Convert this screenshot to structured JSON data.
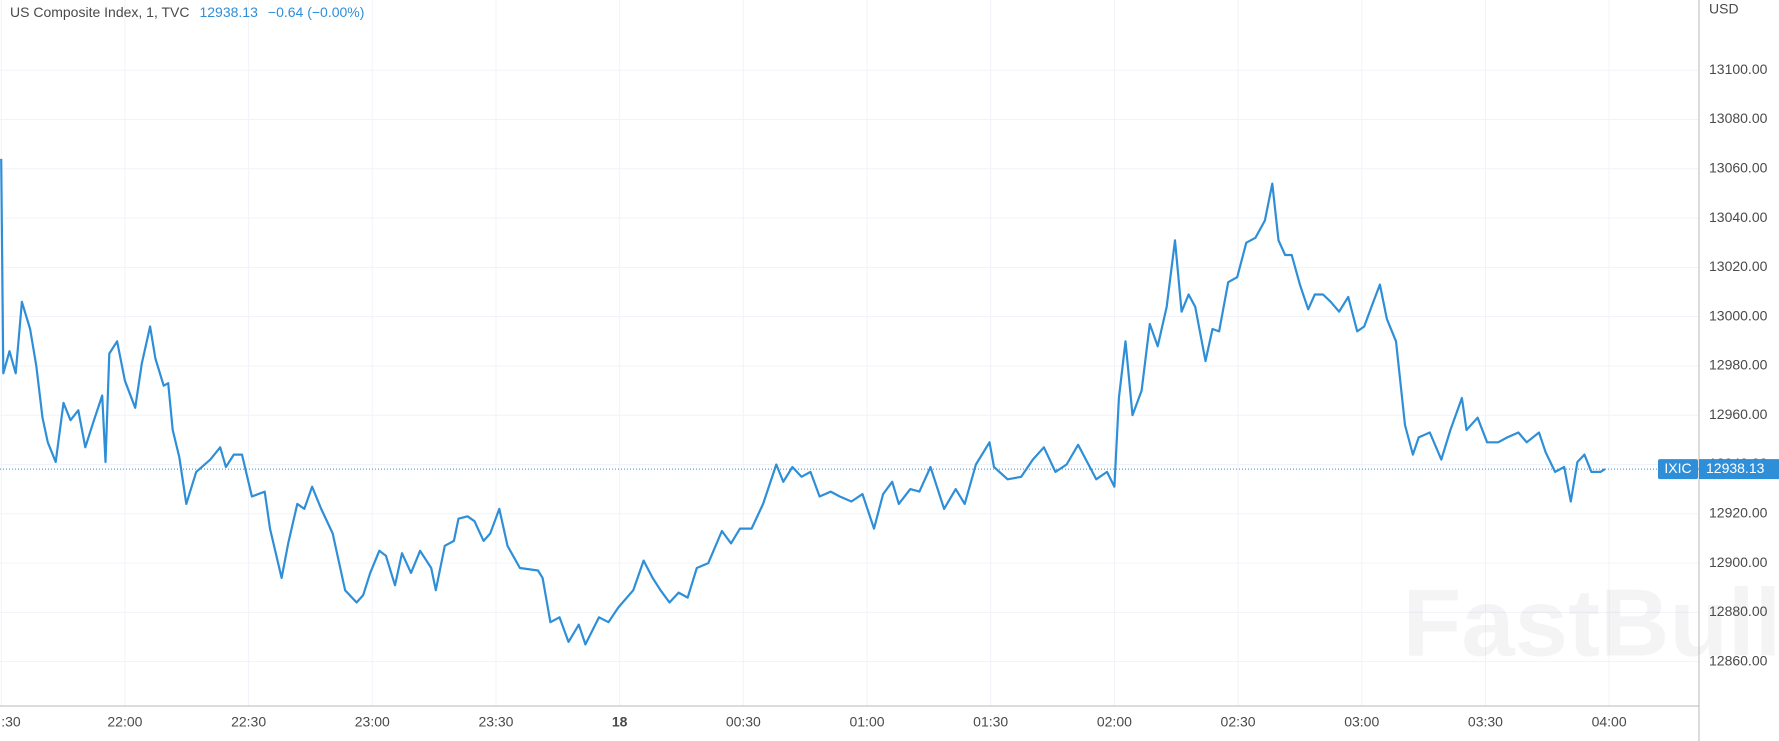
{
  "chart_data": {
    "type": "line",
    "title": "US Composite Index, 1, TVC",
    "last_value": 12938.13,
    "change": "−0.64 (−0.00%)",
    "symbol": "IXIC",
    "currency": "USD",
    "watermark": "FastBull",
    "grid": true,
    "x": [
      0,
      0.5,
      2,
      3.5,
      5,
      7,
      8.5,
      10,
      11.3,
      13.2,
      15.1,
      16.8,
      18.7,
      20.4,
      22.3,
      24.5,
      25.3,
      26.2,
      28.1,
      30,
      32.5,
      34.1,
      36.1,
      37.4,
      39.4,
      40.5,
      41.6,
      43.2,
      44.9,
      47.3,
      50.7,
      53.1,
      54.5,
      56.4,
      58.4,
      60.8,
      63.9,
      65.2,
      68,
      69.6,
      71.8,
      73.5,
      75.4,
      77.6,
      80.4,
      83.4,
      86.2,
      87.8,
      89.5,
      91.7,
      93.3,
      95.5,
      97.2,
      99.4,
      101.6,
      104.3,
      105.4,
      107.6,
      109.8,
      110.9,
      113.1,
      114.8,
      117,
      118.6,
      120.8,
      122.8,
      125.8,
      130.2,
      131.3,
      133.2,
      135.4,
      137.6,
      140.1,
      141.7,
      145,
      147.3,
      149.7,
      153.3,
      155.8,
      158,
      159.9,
      162.1,
      164.3,
      166.5,
      168.7,
      171.5,
      174.8,
      177,
      179.2,
      182,
      184.8,
      188,
      189.7,
      191.9,
      194.1,
      196.3,
      198.5,
      201.2,
      203.4,
      206.2,
      208.9,
      211.7,
      213.9,
      216.1,
      217.7,
      220.5,
      222.7,
      225.4,
      228.7,
      231.5,
      233.7,
      236.4,
      239.7,
      240.8,
      244.1,
      247.4,
      250.2,
      252.9,
      255.7,
      258.4,
      261.2,
      263.4,
      265.6,
      268.2,
      270,
      271.1,
      272.7,
      274.4,
      276.6,
      278.6,
      280.5,
      282.7,
      284.7,
      286.3,
      288,
      289.6,
      292.1,
      293.8,
      295.4,
      297.6,
      299.8,
      302,
      304.2,
      306.5,
      308.3,
      309.8,
      311.4,
      313,
      315,
      317,
      318.6,
      320.6,
      322.5,
      324.5,
      326.7,
      328.9,
      330.6,
      332.8,
      334.4,
      336.1,
      338.3,
      340.5,
      342.4,
      343.8,
      346.5,
      349.3,
      351.5,
      354.3,
      355.4,
      358.1,
      360.4,
      363.1,
      365.3,
      368,
      370,
      373,
      374.6,
      376.9,
      379.1,
      380.7,
      382.3,
      384,
      385.7,
      387.9,
      389
    ],
    "series": [
      {
        "name": "IXIC",
        "color": "#2e8fd8",
        "values": [
          13064,
          12977,
          12986,
          12977,
          13006,
          12995,
          12980,
          12959,
          12949,
          12941,
          12965,
          12958,
          12962,
          12947,
          12957,
          12968,
          12941,
          12985,
          12990,
          12974,
          12963,
          12981,
          12996,
          12983,
          12972,
          12973,
          12954,
          12943,
          12924,
          12937,
          12942,
          12947,
          12939,
          12944,
          12944,
          12927,
          12929,
          12914,
          12894,
          12908,
          12924,
          12922,
          12931,
          12922,
          12912,
          12889,
          12884,
          12887,
          12896,
          12905,
          12903,
          12891,
          12904,
          12896,
          12905,
          12898,
          12889,
          12907,
          12909,
          12918,
          12919,
          12917,
          12909,
          12912,
          12922,
          12907,
          12898,
          12897,
          12894,
          12876,
          12878,
          12868,
          12875,
          12867,
          12878,
          12876,
          12882,
          12889,
          12901,
          12894,
          12889,
          12884,
          12888,
          12886,
          12898,
          12900,
          12913,
          12908,
          12914,
          12914,
          12924,
          12940,
          12933,
          12939,
          12935,
          12937,
          12927,
          12929,
          12927,
          12925,
          12928,
          12914,
          12928,
          12933,
          12924,
          12930,
          12929,
          12939,
          12922,
          12930,
          12924,
          12940,
          12949,
          12939,
          12934,
          12935,
          12942,
          12947,
          12937,
          12940,
          12948,
          12941,
          12934,
          12937,
          12931,
          12967,
          12990,
          12960,
          12970,
          12997,
          12988,
          13004,
          13031,
          13002,
          13009,
          13004,
          12982,
          12995,
          12994,
          13014,
          13016,
          13030,
          13032,
          13039,
          13054,
          13031,
          13025,
          13025,
          13013,
          13003,
          13009,
          13009,
          13006,
          13002,
          13008,
          12994,
          12996,
          13006,
          13013,
          12999,
          12990,
          12956,
          12944,
          12951,
          12953,
          12942,
          12954,
          12967,
          12954,
          12959,
          12949,
          12949,
          12951,
          12953,
          12949,
          12953,
          12945,
          12937,
          12939,
          12925,
          12941,
          12944,
          12937,
          12937,
          12938.13
        ]
      }
    ],
    "xlim": [
      -0.3,
      411.8
    ],
    "xticks": [
      {
        "value": 0,
        "label": ":30"
      },
      {
        "value": 30,
        "label": "22:00"
      },
      {
        "value": 60,
        "label": "22:30"
      },
      {
        "value": 90,
        "label": "23:00"
      },
      {
        "value": 120,
        "label": "23:30"
      },
      {
        "value": 150,
        "label": "18"
      },
      {
        "value": 180,
        "label": "00:30"
      },
      {
        "value": 210,
        "label": "01:00"
      },
      {
        "value": 240,
        "label": "01:30"
      },
      {
        "value": 270,
        "label": "02:00"
      },
      {
        "value": 300,
        "label": "02:30"
      },
      {
        "value": 330,
        "label": "03:00"
      },
      {
        "value": 360,
        "label": "03:30"
      },
      {
        "value": 390,
        "label": "04:00"
      }
    ],
    "ylim": [
      12842,
      13128.5
    ],
    "yticks": [
      {
        "value": 12860,
        "label": "12860.00"
      },
      {
        "value": 12880,
        "label": "12880.00"
      },
      {
        "value": 12900,
        "label": "12900.00"
      },
      {
        "value": 12920,
        "label": "12920.00"
      },
      {
        "value": 12940,
        "label": "12940.00"
      },
      {
        "value": 12960,
        "label": "12960.00"
      },
      {
        "value": 12980,
        "label": "12980.00"
      },
      {
        "value": 13000,
        "label": "13000.00"
      },
      {
        "value": 13020,
        "label": "13020.00"
      },
      {
        "value": 13040,
        "label": "13040.00"
      },
      {
        "value": 13060,
        "label": "13060.00"
      },
      {
        "value": 13080,
        "label": "13080.00"
      },
      {
        "value": 13100,
        "label": "13100.00"
      }
    ]
  }
}
